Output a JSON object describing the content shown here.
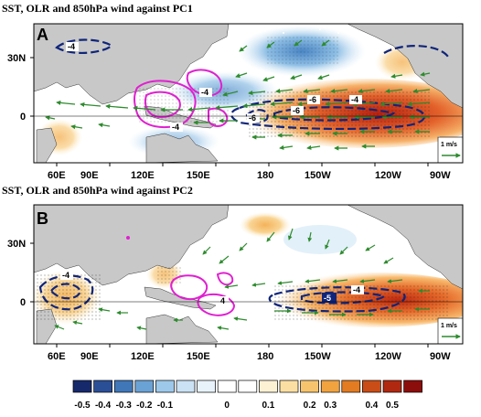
{
  "panels": [
    {
      "id": "A",
      "title": "SST, OLR and 850hPa wind against PC1",
      "label": "A",
      "lat_ticks": [
        "30N",
        "0"
      ],
      "lon_ticks": [
        "60E",
        "90E",
        "120E",
        "150E",
        "180",
        "150W",
        "120W",
        "90W"
      ],
      "contour_labels": [
        "-4",
        "-4",
        "-6",
        "-4",
        "-6",
        "-6",
        "-4"
      ],
      "reference_vector": "1 m/s"
    },
    {
      "id": "B",
      "title": "SST, OLR and 850hPa wind against PC2",
      "label": "B",
      "lat_ticks": [
        "30N",
        "0"
      ],
      "lon_ticks": [
        "60E",
        "90E",
        "120E",
        "150E",
        "180",
        "150W",
        "120W",
        "90W"
      ],
      "contour_labels": [
        "-4",
        "4",
        "-5",
        "-4"
      ],
      "reference_vector": "1 m/s"
    }
  ],
  "colorbar": {
    "labels": [
      "-0.5",
      "-0.4",
      "-0.3",
      "-0.2",
      "-0.1",
      "0",
      "0.1",
      "0.2",
      "0.3",
      "0.4",
      "0.5"
    ],
    "colors": [
      "#16296b",
      "#2b4f96",
      "#4077b9",
      "#6ba2d5",
      "#9dc8ea",
      "#cae2f4",
      "#e8f2fa",
      "#ffffff",
      "#ffffff",
      "#fdf1d3",
      "#fbdfa2",
      "#f7c46d",
      "#f1a340",
      "#e27b22",
      "#ca4d17",
      "#b12810",
      "#8c0e0c"
    ]
  },
  "legend_colors": {
    "sst_positive": "#d9461a",
    "sst_negative": "#4a86c4",
    "olr_positive": "#e020d0",
    "olr_negative": "#10257a",
    "wind": "#2e8b2e",
    "land": "#c8c8c8"
  }
}
